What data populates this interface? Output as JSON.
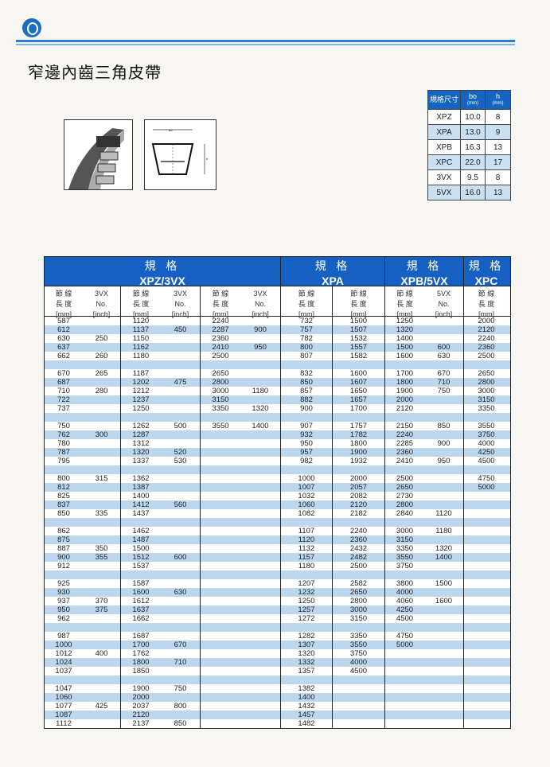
{
  "header": {
    "title": "窄邊內齒三角皮帶"
  },
  "spec_table": {
    "headers": [
      {
        "label": "規格尺寸",
        "unit": ""
      },
      {
        "label": "bo",
        "unit": "(mm)"
      },
      {
        "label": "h",
        "unit": "(mm)"
      }
    ],
    "rows": [
      [
        "XPZ",
        "10.0",
        "8"
      ],
      [
        "XPA",
        "13.0",
        "9"
      ],
      [
        "XPB",
        "16.3",
        "13"
      ],
      [
        "XPC",
        "22.0",
        "17"
      ],
      [
        "3VX",
        "9.5",
        "8"
      ],
      [
        "5VX",
        "16.0",
        "13"
      ]
    ]
  },
  "diagram": {
    "bo_label": "bo",
    "h_label": "h"
  },
  "colors": {
    "header_blue": "#1660c4",
    "stripe": "#bcd7ee",
    "rule": "#2a7fd4"
  },
  "main_table": {
    "groups": [
      {
        "zh": "規 格",
        "code": "XPZ/3VX"
      },
      {
        "zh": "規 格",
        "code": "XPA"
      },
      {
        "zh": "規 格",
        "code": "XPB/5VX"
      },
      {
        "zh": "規 格",
        "code": "XPC"
      }
    ],
    "columns": [
      [
        "節 線",
        "長 度",
        "[mm]"
      ],
      [
        "3VX",
        "No.",
        "[inch]"
      ],
      [
        "節 線",
        "長 度",
        "[mm]"
      ],
      [
        "3VX",
        "No.",
        "[inch]"
      ],
      [
        "節 線",
        "長 度",
        "[mm]"
      ],
      [
        "3VX",
        "No.",
        "[inch]"
      ],
      [
        "節 線",
        "長 度",
        "[mm]"
      ],
      [
        "節 線",
        "長 度",
        "[mm]"
      ],
      [
        "節 線",
        "長 度",
        "[mm]"
      ],
      [
        "5VX",
        "No.",
        "[inch]"
      ],
      [
        "節 線",
        "長 度",
        "[mm]"
      ]
    ],
    "blocks": [
      [
        [
          "587",
          "",
          "1120",
          "",
          "2240",
          "",
          "732",
          "1500",
          "1250",
          "",
          "2000"
        ],
        [
          "612",
          "",
          "1137",
          "450",
          "2287",
          "900",
          "757",
          "1507",
          "1320",
          "",
          "2120"
        ],
        [
          "630",
          "250",
          "1150",
          "",
          "2360",
          "",
          "782",
          "1532",
          "1400",
          "",
          "2240"
        ],
        [
          "637",
          "",
          "1162",
          "",
          "2410",
          "950",
          "800",
          "1557",
          "1500",
          "600",
          "2360"
        ],
        [
          "662",
          "260",
          "1180",
          "",
          "2500",
          "",
          "807",
          "1582",
          "1600",
          "630",
          "2500"
        ]
      ],
      [
        [
          "670",
          "265",
          "1187",
          "",
          "2650",
          "",
          "832",
          "1600",
          "1700",
          "670",
          "2650"
        ],
        [
          "687",
          "",
          "1202",
          "475",
          "2800",
          "",
          "850",
          "1607",
          "1800",
          "710",
          "2800"
        ],
        [
          "710",
          "280",
          "1212",
          "",
          "3000",
          "1180",
          "857",
          "1650",
          "1900",
          "750",
          "3000"
        ],
        [
          "722",
          "",
          "1237",
          "",
          "3150",
          "",
          "882",
          "1657",
          "2000",
          "",
          "3150"
        ],
        [
          "737",
          "",
          "1250",
          "",
          "3350",
          "1320",
          "900",
          "1700",
          "2120",
          "",
          "3350"
        ]
      ],
      [
        [
          "750",
          "",
          "1262",
          "500",
          "3550",
          "1400",
          "907",
          "1757",
          "2150",
          "850",
          "3550"
        ],
        [
          "762",
          "300",
          "1287",
          "",
          "",
          "",
          "932",
          "1782",
          "2240",
          "",
          "3750"
        ],
        [
          "780",
          "",
          "1312",
          "",
          "",
          "",
          "950",
          "1800",
          "2285",
          "900",
          "4000"
        ],
        [
          "787",
          "",
          "1320",
          "520",
          "",
          "",
          "957",
          "1900",
          "2360",
          "",
          "4250"
        ],
        [
          "795",
          "",
          "1337",
          "530",
          "",
          "",
          "982",
          "1932",
          "2410",
          "950",
          "4500"
        ]
      ],
      [
        [
          "800",
          "315",
          "1362",
          "",
          "",
          "",
          "1000",
          "2000",
          "2500",
          "",
          "4750"
        ],
        [
          "812",
          "",
          "1387",
          "",
          "",
          "",
          "1007",
          "2057",
          "2650",
          "",
          "5000"
        ],
        [
          "825",
          "",
          "1400",
          "",
          "",
          "",
          "1032",
          "2082",
          "2730",
          "",
          ""
        ],
        [
          "837",
          "",
          "1412",
          "560",
          "",
          "",
          "1060",
          "2120",
          "2800",
          "",
          ""
        ],
        [
          "850",
          "335",
          "1437",
          "",
          "",
          "",
          "1082",
          "2182",
          "2840",
          "1120",
          ""
        ]
      ],
      [
        [
          "862",
          "",
          "1462",
          "",
          "",
          "",
          "1107",
          "2240",
          "3000",
          "1180",
          ""
        ],
        [
          "875",
          "",
          "1487",
          "",
          "",
          "",
          "1120",
          "2360",
          "3150",
          "",
          ""
        ],
        [
          "887",
          "350",
          "1500",
          "",
          "",
          "",
          "1132",
          "2432",
          "3350",
          "1320",
          ""
        ],
        [
          "900",
          "355",
          "1512",
          "600",
          "",
          "",
          "1157",
          "2482",
          "3550",
          "1400",
          ""
        ],
        [
          "912",
          "",
          "1537",
          "",
          "",
          "",
          "1180",
          "2500",
          "3750",
          "",
          ""
        ]
      ],
      [
        [
          "925",
          "",
          "1587",
          "",
          "",
          "",
          "1207",
          "2582",
          "3800",
          "1500",
          ""
        ],
        [
          "930",
          "",
          "1600",
          "630",
          "",
          "",
          "1232",
          "2650",
          "4000",
          "",
          ""
        ],
        [
          "937",
          "370",
          "1612",
          "",
          "",
          "",
          "1250",
          "2800",
          "4060",
          "1600",
          ""
        ],
        [
          "950",
          "375",
          "1637",
          "",
          "",
          "",
          "1257",
          "3000",
          "4250",
          "",
          ""
        ],
        [
          "962",
          "",
          "1662",
          "",
          "",
          "",
          "1272",
          "3150",
          "4500",
          "",
          ""
        ]
      ],
      [
        [
          "987",
          "",
          "1687",
          "",
          "",
          "",
          "1282",
          "3350",
          "4750",
          "",
          ""
        ],
        [
          "1000",
          "",
          "1700",
          "670",
          "",
          "",
          "1307",
          "3550",
          "5000",
          "",
          ""
        ],
        [
          "1012",
          "400",
          "1762",
          "",
          "",
          "",
          "1320",
          "3750",
          "",
          "",
          ""
        ],
        [
          "1024",
          "",
          "1800",
          "710",
          "",
          "",
          "1332",
          "4000",
          "",
          "",
          ""
        ],
        [
          "1037",
          "",
          "1850",
          "",
          "",
          "",
          "1357",
          "4500",
          "",
          "",
          ""
        ]
      ],
      [
        [
          "1047",
          "",
          "1900",
          "750",
          "",
          "",
          "1382",
          "",
          "",
          "",
          ""
        ],
        [
          "1060",
          "",
          "2000",
          "",
          "",
          "",
          "1400",
          "",
          "",
          "",
          ""
        ],
        [
          "1077",
          "425",
          "2037",
          "800",
          "",
          "",
          "1432",
          "",
          "",
          "",
          ""
        ],
        [
          "1087",
          "",
          "2120",
          "",
          "",
          "",
          "1457",
          "",
          "",
          "",
          ""
        ],
        [
          "1112",
          "",
          "2137",
          "850",
          "",
          "",
          "1482",
          "",
          "",
          "",
          ""
        ]
      ]
    ]
  }
}
